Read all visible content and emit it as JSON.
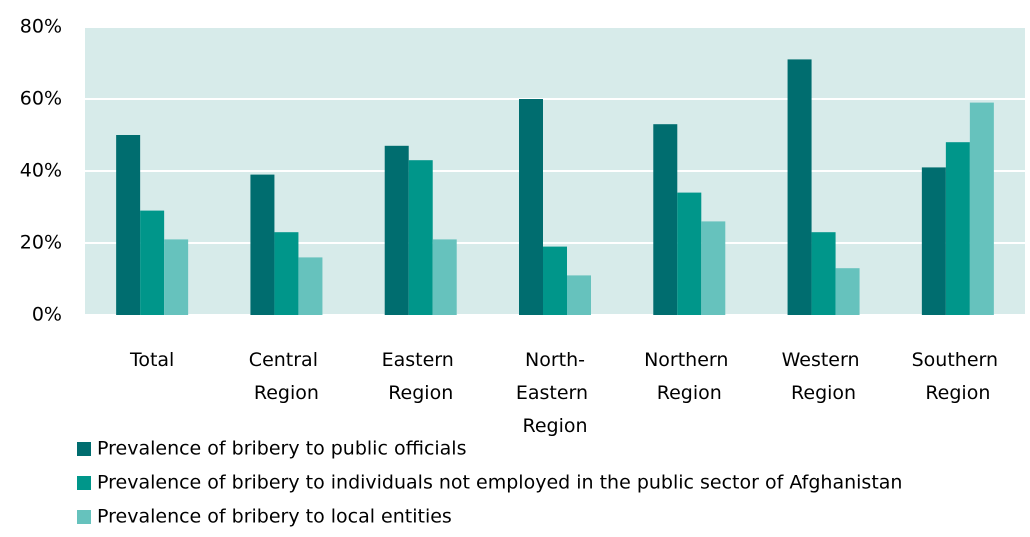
{
  "chart_data": {
    "type": "bar",
    "categories": [
      "Total",
      "Central Region",
      "Eastern Region",
      "North-Eastern Region",
      "Northern Region",
      "Western Region",
      "Southern Region"
    ],
    "series": [
      {
        "name": "Prevalence of bribery to public officials",
        "color": "#006d6f",
        "values": [
          50,
          39,
          47,
          60,
          53,
          71,
          41
        ]
      },
      {
        "name": "Prevalence of bribery to individuals not employed in the public sector of Afghanistan",
        "color": "#00968a",
        "values": [
          29,
          23,
          43,
          19,
          34,
          23,
          48
        ]
      },
      {
        "name": "Prevalence of bribery to local entities",
        "color": "#66c2bd",
        "values": [
          21,
          16,
          21,
          11,
          26,
          13,
          59
        ]
      }
    ],
    "ylim": [
      0,
      80
    ],
    "yticks": [
      {
        "value": 0,
        "label": "0%"
      },
      {
        "value": 20,
        "label": "20%"
      },
      {
        "value": 40,
        "label": "40%"
      },
      {
        "value": 60,
        "label": "60%"
      },
      {
        "value": 80,
        "label": "80%"
      }
    ],
    "grid": true,
    "plot_background": "#d7ebea",
    "legend": "bottom"
  }
}
